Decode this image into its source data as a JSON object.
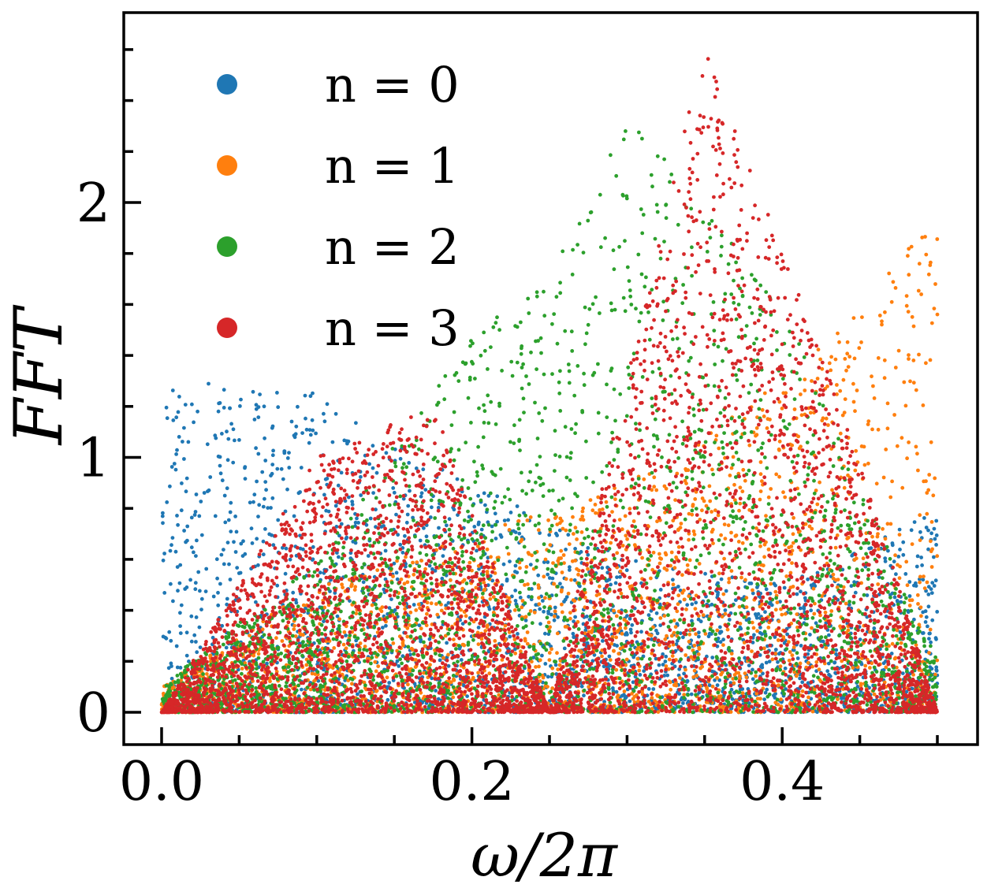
{
  "chart_data": {
    "type": "scatter",
    "title": "",
    "xlabel": "ω/2π",
    "ylabel": "FFT",
    "xlim": [
      -0.025,
      0.525
    ],
    "ylim": [
      -0.125,
      2.75
    ],
    "xticks": [
      0.0,
      0.2,
      0.4
    ],
    "xtick_labels": [
      "0.0",
      "0.2",
      "0.4"
    ],
    "yticks": [
      0,
      1,
      2
    ],
    "ytick_labels": [
      "0",
      "1",
      "2"
    ],
    "x_minor_step": 0.05,
    "y_minor_step": 0.2,
    "grid": false,
    "legend_position": "top-left",
    "series": [
      {
        "name": "n = 0",
        "legend_label": "n = 0",
        "color": "#1f77b4",
        "description": "dense cloud concentrated at low frequency",
        "envelope": {
          "x": [
            0.0,
            0.05,
            0.1,
            0.15,
            0.2,
            0.3,
            0.4,
            0.5
          ],
          "y_max": [
            1.3,
            1.3,
            1.25,
            1.05,
            0.9,
            0.6,
            0.5,
            0.8
          ]
        }
      },
      {
        "name": "n = 1",
        "legend_label": "n = 1",
        "color": "#ff7f0e",
        "description": "cloud concentrated near the upper frequency edge",
        "envelope": {
          "x": [
            0.0,
            0.1,
            0.2,
            0.3,
            0.4,
            0.45,
            0.5
          ],
          "y_max": [
            0.1,
            0.5,
            0.7,
            0.9,
            1.3,
            1.6,
            1.95
          ]
        }
      },
      {
        "name": "n = 2",
        "legend_label": "n = 2",
        "color": "#2ca02c",
        "description": "peaked near 0.25 and 0.3",
        "envelope": {
          "x": [
            0.0,
            0.1,
            0.2,
            0.25,
            0.3,
            0.4,
            0.5
          ],
          "y_max": [
            0.1,
            0.6,
            1.5,
            1.7,
            2.35,
            1.6,
            0.2
          ]
        }
      },
      {
        "name": "n = 3",
        "legend_label": "n = 3",
        "color": "#d62728",
        "description": "two triangular lobes with zero near 0.25, maximum near 0.35",
        "envelope": {
          "x": [
            0.0,
            0.1,
            0.175,
            0.25,
            0.35,
            0.45,
            0.5
          ],
          "y_max": [
            0.0,
            1.0,
            1.2,
            0.0,
            2.62,
            1.0,
            0.0
          ]
        }
      }
    ]
  }
}
